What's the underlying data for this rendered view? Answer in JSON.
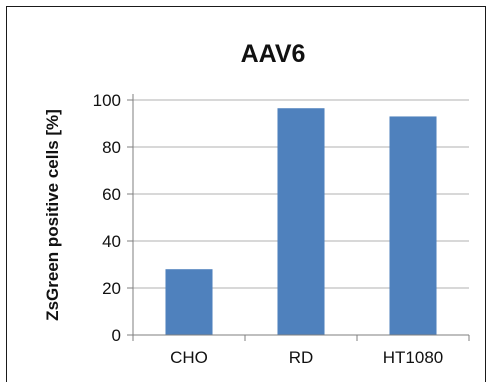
{
  "chart_data": {
    "type": "bar",
    "title": "AAV6",
    "xlabel": "",
    "ylabel": "ZsGreen positive cells [%]",
    "categories": [
      "CHO",
      "RD",
      "HT1080"
    ],
    "values": [
      28,
      96.5,
      93
    ],
    "ylim": [
      0,
      100
    ],
    "yticks": [
      0,
      20,
      40,
      60,
      80,
      100
    ],
    "grid": true,
    "legend": "none",
    "colors": {
      "bar": "#4f81bd",
      "grid": "#b0b0b0",
      "axis": "#7f7f7f"
    }
  }
}
